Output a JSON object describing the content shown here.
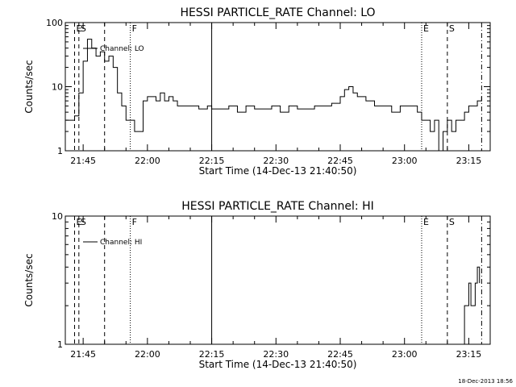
{
  "footer_timestamp": "18-Dec-2013 18:56",
  "colors": {
    "line": "#000000",
    "background": "#ffffff"
  },
  "chart_data": [
    {
      "type": "line",
      "title": "HESSI PARTICLE_RATE Channel: LO",
      "xlabel": "Start Time (14-Dec-13 21:40:50)",
      "ylabel": "Counts/sec",
      "scale_y": "log",
      "ylim": [
        1,
        100
      ],
      "xlim": [
        "21:40:50",
        "23:20:00"
      ],
      "y_ticks": [
        "1",
        "10",
        "100"
      ],
      "x_ticks": [
        "21:45",
        "22:00",
        "22:15",
        "22:30",
        "22:45",
        "23:00",
        "23:15"
      ],
      "legend": {
        "label": "Channel: LO",
        "position": "top-left"
      },
      "markers": [
        {
          "label": "E",
          "time": "21:43",
          "style": "dashed"
        },
        {
          "label": "S",
          "time": "21:44",
          "style": "dashed"
        },
        {
          "label": "",
          "time": "21:50",
          "style": "dashed"
        },
        {
          "label": "F",
          "time": "21:56",
          "style": "dotted"
        },
        {
          "label": "",
          "time": "22:15",
          "style": "solid"
        },
        {
          "label": "E",
          "time": "23:04",
          "style": "dotted"
        },
        {
          "label": "S",
          "time": "23:10",
          "style": "dashed"
        },
        {
          "label": "",
          "time": "23:18",
          "style": "dashdot"
        }
      ],
      "series": [
        {
          "x": [
            "21:41",
            "21:42",
            "21:43",
            "21:44",
            "21:45",
            "21:46",
            "21:47",
            "21:48",
            "21:49",
            "21:50",
            "21:51",
            "21:52",
            "21:53",
            "21:54",
            "21:55",
            "21:56",
            "21:57",
            "21:58",
            "21:59",
            "22:00",
            "22:01",
            "22:02",
            "22:03",
            "22:04",
            "22:05",
            "22:06",
            "22:07",
            "22:08",
            "22:10",
            "22:12",
            "22:14",
            "22:15",
            "22:17",
            "22:19",
            "22:21",
            "22:23",
            "22:25",
            "22:27",
            "22:29",
            "22:31",
            "22:33",
            "22:35",
            "22:37",
            "22:39",
            "22:41",
            "22:43",
            "22:45",
            "22:46",
            "22:47",
            "22:48",
            "22:49",
            "22:51",
            "22:53",
            "22:55",
            "22:57",
            "22:59",
            "23:01",
            "23:03",
            "23:04",
            "23:05",
            "23:06",
            "23:07",
            "23:08",
            "23:09",
            "23:10",
            "23:11",
            "23:12",
            "23:13",
            "23:14",
            "23:15",
            "23:16",
            "23:17",
            "23:18"
          ],
          "values": [
            3,
            3,
            3.5,
            8,
            25,
            55,
            40,
            30,
            35,
            25,
            30,
            20,
            8,
            5,
            3,
            3,
            2,
            2,
            6,
            7,
            7,
            6,
            8,
            6,
            7,
            6,
            5,
            5,
            5,
            4.5,
            5,
            4.5,
            4.5,
            5,
            4,
            5,
            4.5,
            4.5,
            5,
            4,
            5,
            4.5,
            4.5,
            5,
            5,
            5.5,
            7,
            9,
            10,
            8,
            7,
            6,
            5,
            5,
            4,
            5,
            5,
            4,
            3,
            3,
            2,
            3,
            1,
            2,
            3,
            2,
            3,
            3,
            4,
            5,
            5,
            6,
            7
          ]
        }
      ]
    },
    {
      "type": "line",
      "title": "HESSI PARTICLE_RATE Channel: HI",
      "xlabel": "Start Time (14-Dec-13 21:40:50)",
      "ylabel": "Counts/sec",
      "scale_y": "log",
      "ylim": [
        1,
        10
      ],
      "xlim": [
        "21:40:50",
        "23:20:00"
      ],
      "y_ticks": [
        "1",
        "10"
      ],
      "x_ticks": [
        "21:45",
        "22:00",
        "22:15",
        "22:30",
        "22:45",
        "23:00",
        "23:15"
      ],
      "legend": {
        "label": "Channel: HI",
        "position": "top-left"
      },
      "markers": [
        {
          "label": "E",
          "time": "21:43",
          "style": "dashed"
        },
        {
          "label": "S",
          "time": "21:44",
          "style": "dashed"
        },
        {
          "label": "",
          "time": "21:50",
          "style": "dashed"
        },
        {
          "label": "F",
          "time": "21:56",
          "style": "dotted"
        },
        {
          "label": "",
          "time": "22:15",
          "style": "solid"
        },
        {
          "label": "E",
          "time": "23:04",
          "style": "dotted"
        },
        {
          "label": "S",
          "time": "23:10",
          "style": "dashed"
        },
        {
          "label": "",
          "time": "23:18",
          "style": "dashdot"
        }
      ],
      "series": [
        {
          "x": [
            "23:13",
            "23:14",
            "23:14.5",
            "23:15",
            "23:15.5",
            "23:16",
            "23:16.5",
            "23:17",
            "23:17.5"
          ],
          "values": [
            1,
            2,
            2,
            3,
            2,
            2,
            3,
            4,
            3
          ]
        }
      ]
    }
  ]
}
